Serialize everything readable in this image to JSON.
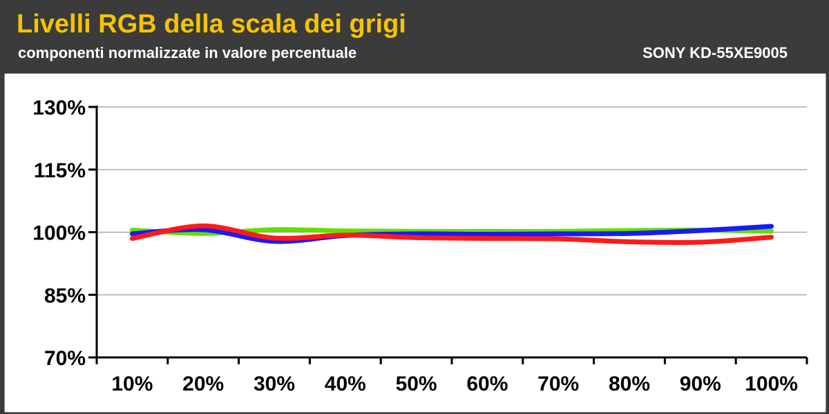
{
  "header": {
    "title": "Livelli RGB della scala dei grigi",
    "subtitle": "componenti normalizzate in valore percentuale",
    "model": "SONY KD-55XE9005"
  },
  "colors": {
    "title": "#f5c400",
    "background": "#3b3b3b",
    "red": "#ff1a1a",
    "green": "#66dd00",
    "blue": "#1a1aff"
  },
  "chart_data": {
    "type": "line",
    "title": "Livelli RGB della scala dei grigi",
    "subtitle": "componenti normalizzate in valore percentuale",
    "categories": [
      "10%",
      "20%",
      "30%",
      "40%",
      "50%",
      "60%",
      "70%",
      "80%",
      "90%",
      "100%"
    ],
    "ylim": [
      70,
      130
    ],
    "yticks": [
      70,
      85,
      100,
      115,
      130
    ],
    "ytick_labels": [
      "70%",
      "85%",
      "100%",
      "115%",
      "130%"
    ],
    "grid": true,
    "legend": "none",
    "series": [
      {
        "color": "#66dd00",
        "values": [
          100.5,
          99.7,
          100.6,
          100.3,
          100.2,
          100.2,
          100.2,
          100.4,
          100.5,
          100.2
        ]
      },
      {
        "color": "#1a1aff",
        "values": [
          99.6,
          100.6,
          97.8,
          99.2,
          99.6,
          99.5,
          99.6,
          99.7,
          100.4,
          101.4
        ]
      },
      {
        "color": "#ff1a1a",
        "values": [
          98.5,
          101.5,
          98.6,
          99.3,
          98.7,
          98.5,
          98.4,
          97.7,
          97.6,
          98.8
        ]
      }
    ]
  }
}
